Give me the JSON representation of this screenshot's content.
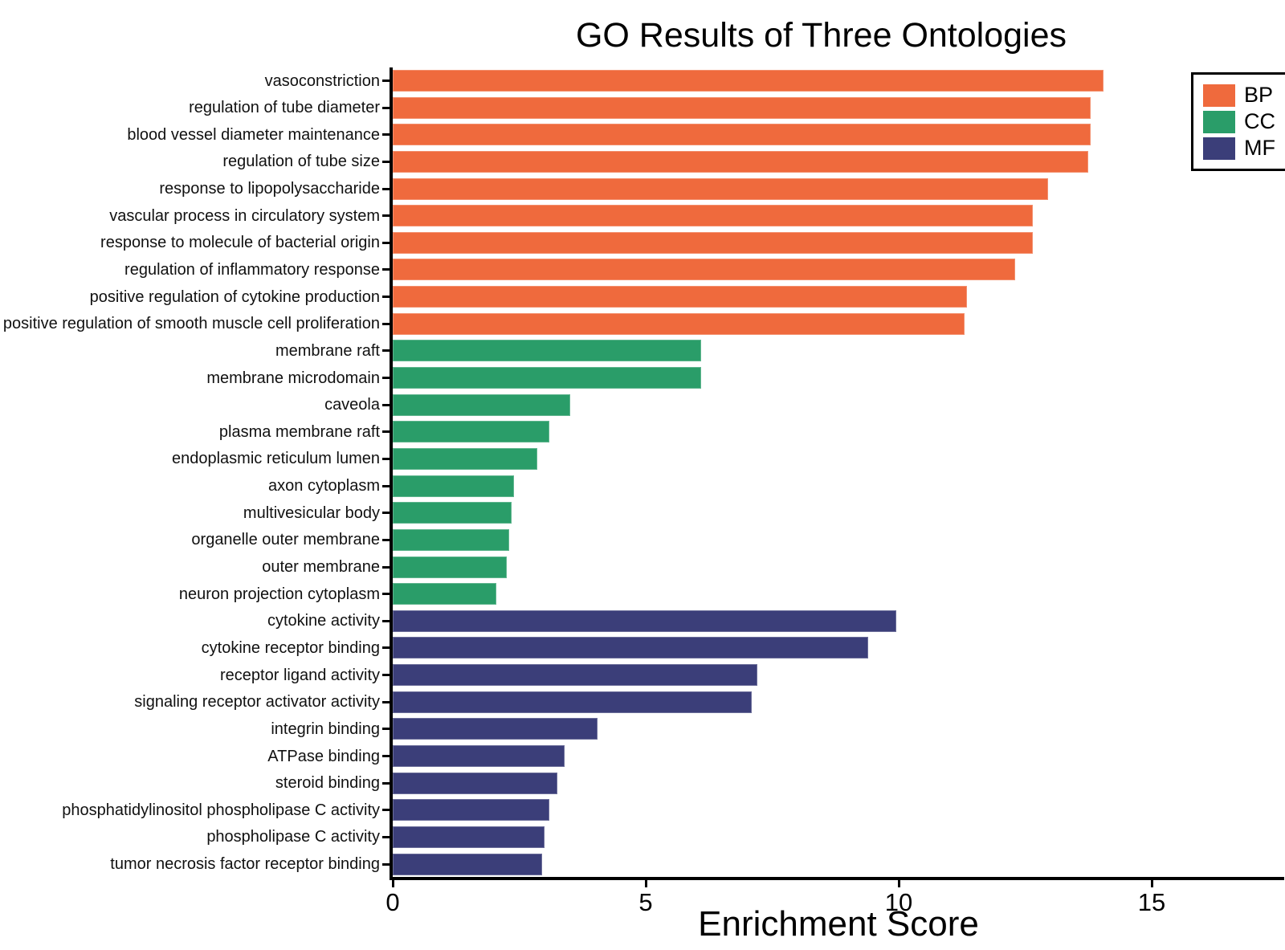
{
  "title": "GO Results of Three Ontologies",
  "xlabel": "Enrichment Score",
  "legend": {
    "position": "top-right",
    "items": [
      {
        "label": "BP",
        "color": "#EF6A3D"
      },
      {
        "label": "CC",
        "color": "#2A9D69"
      },
      {
        "label": "MF",
        "color": "#3B3E79"
      }
    ]
  },
  "axis": {
    "x_tick_labels": [
      "0",
      "5",
      "10",
      "15"
    ],
    "x_tick_values": [
      0,
      5,
      10,
      15
    ],
    "x_min": 0,
    "x_max": 17.55
  },
  "chart_data": {
    "type": "bar",
    "orientation": "horizontal",
    "title": "GO Results of Three Ontologies",
    "xlabel": "Enrichment Score",
    "ylabel": "",
    "xlim": [
      0,
      17.55
    ],
    "grid": false,
    "legend_position": "top-right",
    "legend_entries": [
      "BP",
      "CC",
      "MF"
    ],
    "categories": [
      "vasoconstriction",
      "regulation of tube diameter",
      "blood vessel diameter maintenance",
      "regulation of tube size",
      "response to lipopolysaccharide",
      "vascular process in circulatory system",
      "response to molecule of bacterial origin",
      "regulation of inflammatory response",
      "positive regulation of cytokine production",
      "positive regulation of smooth muscle cell proliferation",
      "membrane raft",
      "membrane microdomain",
      "caveola",
      "plasma membrane raft",
      "endoplasmic reticulum lumen",
      "axon cytoplasm",
      "multivesicular body",
      "organelle outer membrane",
      "outer membrane",
      "neuron projection cytoplasm",
      "cytokine activity",
      "cytokine receptor binding",
      "receptor ligand activity",
      "signaling receptor activator activity",
      "integrin binding",
      "ATPase binding",
      "steroid binding",
      "phosphatidylinositol phospholipase C activity",
      "phospholipase C activity",
      "tumor necrosis factor receptor binding"
    ],
    "groups": [
      "BP",
      "BP",
      "BP",
      "BP",
      "BP",
      "BP",
      "BP",
      "BP",
      "BP",
      "BP",
      "CC",
      "CC",
      "CC",
      "CC",
      "CC",
      "CC",
      "CC",
      "CC",
      "CC",
      "CC",
      "MF",
      "MF",
      "MF",
      "MF",
      "MF",
      "MF",
      "MF",
      "MF",
      "MF",
      "MF"
    ],
    "values": [
      14.05,
      13.8,
      13.8,
      13.75,
      12.95,
      12.65,
      12.65,
      12.3,
      11.35,
      11.3,
      6.1,
      6.1,
      3.5,
      3.1,
      2.85,
      2.4,
      2.35,
      2.3,
      2.25,
      2.05,
      9.95,
      9.4,
      7.2,
      7.1,
      4.05,
      3.4,
      3.25,
      3.1,
      3.0,
      2.95
    ]
  }
}
